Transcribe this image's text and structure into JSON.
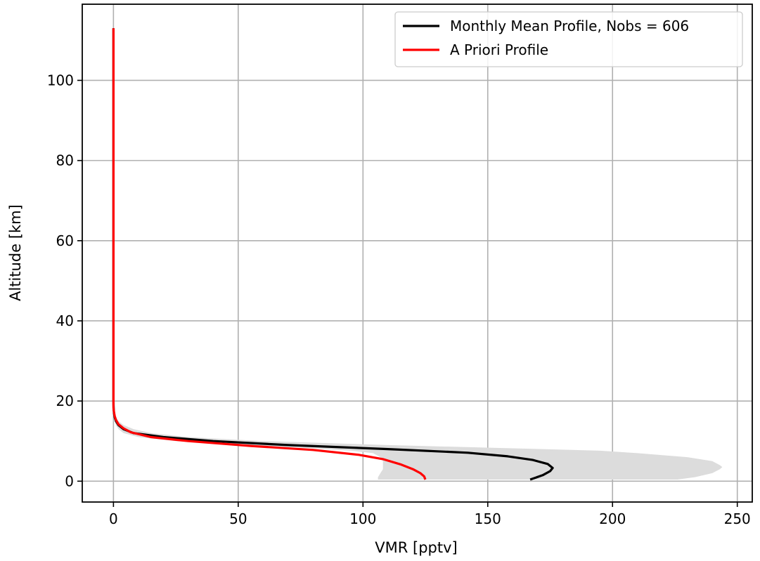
{
  "chart_data": {
    "type": "line",
    "xlabel": "VMR [pptv]",
    "ylabel": "Altitude [km]",
    "xlim": [
      -12.5,
      256
    ],
    "ylim": [
      -5.2,
      119
    ],
    "xticks": [
      0,
      50,
      100,
      150,
      200,
      250
    ],
    "yticks": [
      0,
      20,
      40,
      60,
      80,
      100
    ],
    "grid": true,
    "legend_position": "top-right",
    "series": [
      {
        "name": "Monthly Mean Profile, Nobs = 606",
        "color": "#000000",
        "x": [
          167,
          172,
          175,
          176,
          174,
          168,
          158,
          142,
          110,
          70,
          40,
          20,
          8,
          4,
          2,
          1,
          0.5,
          0.2,
          0.1,
          0.05,
          0,
          0,
          0,
          0,
          0,
          0,
          0,
          0,
          0
        ],
        "y": [
          0.4,
          1.5,
          2.5,
          3.3,
          4.3,
          5.3,
          6.2,
          7.1,
          8.0,
          9.0,
          10.0,
          11.0,
          12.0,
          13.0,
          14.0,
          15.0,
          16.0,
          17.0,
          18.0,
          19.0,
          20,
          30,
          40,
          50,
          60,
          80,
          100,
          110,
          113
        ]
      },
      {
        "name": "A Priori Profile",
        "color": "#ff0000",
        "x": [
          125,
          124.5,
          123,
          120,
          115,
          108,
          98,
          80,
          55,
          30,
          15,
          7,
          4,
          2,
          1,
          0.5,
          0.2,
          0,
          0,
          0,
          0,
          0,
          0,
          0,
          0
        ],
        "y": [
          0.4,
          1.2,
          2.0,
          3.0,
          4.2,
          5.5,
          6.6,
          7.8,
          8.8,
          10.0,
          11.0,
          12.2,
          13.2,
          14.2,
          15.3,
          16.3,
          17.3,
          18.3,
          20,
          40,
          60,
          80,
          100,
          110,
          113
        ]
      }
    ],
    "uncertainty_band": {
      "color": "#dcdcdc",
      "y": [
        0.4,
        1.0,
        2.0,
        3.0,
        3.5,
        4.0,
        5.0,
        6.0,
        7.0,
        7.6,
        8.2,
        9.0,
        10.0,
        11.0,
        12.0,
        13.0,
        14.0,
        15.0,
        16.0,
        17.0,
        18.0
      ],
      "x_low": [
        106,
        106,
        107,
        108,
        108,
        108,
        108,
        107,
        104,
        95,
        80,
        55,
        25,
        10,
        4,
        2,
        1,
        0.5,
        0.2,
        0.1,
        0
      ],
      "x_high": [
        226,
        233,
        240,
        243,
        244,
        243,
        240,
        230,
        210,
        195,
        160,
        110,
        60,
        30,
        15,
        8,
        4,
        2,
        1,
        0.5,
        0
      ]
    }
  }
}
